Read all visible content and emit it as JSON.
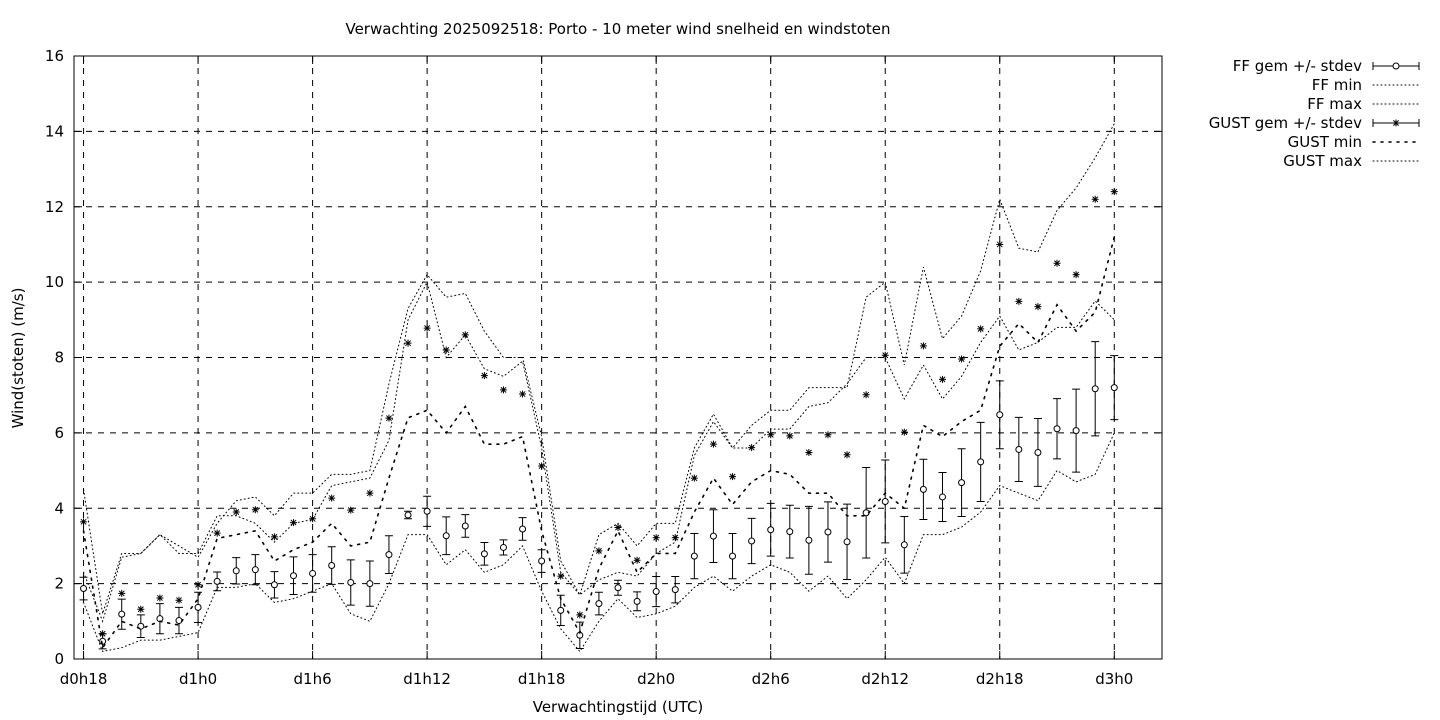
{
  "chart_data": {
    "type": "line",
    "title": "Verwachting 2025092518: Porto - 10 meter wind snelheid en windstoten",
    "xlabel": "Verwachtingstijd (UTC)",
    "ylabel": "Wind(stoten) (m/s)",
    "ylim": [
      0,
      16
    ],
    "xlim": [
      -0.5,
      56.5
    ],
    "grid": true,
    "legend_position": "outside-right-top",
    "y_ticks": [
      "0",
      "2",
      "4",
      "6",
      "8",
      "10",
      "12",
      "14",
      "16"
    ],
    "x_ticks": [
      {
        "x": 0,
        "label": "d0h18"
      },
      {
        "x": 6,
        "label": "d1h0"
      },
      {
        "x": 12,
        "label": "d1h6"
      },
      {
        "x": 18,
        "label": "d1h12"
      },
      {
        "x": 24,
        "label": "d1h18"
      },
      {
        "x": 30,
        "label": "d2h0"
      },
      {
        "x": 36,
        "label": "d2h6"
      },
      {
        "x": 42,
        "label": "d2h12"
      },
      {
        "x": 48,
        "label": "d2h18"
      },
      {
        "x": 54,
        "label": "d3h0"
      }
    ],
    "x": [
      0,
      1,
      2,
      3,
      4,
      5,
      6,
      7,
      8,
      9,
      10,
      11,
      12,
      13,
      14,
      15,
      16,
      17,
      18,
      19,
      20,
      21,
      22,
      23,
      24,
      25,
      26,
      27,
      28,
      29,
      30,
      31,
      32,
      33,
      34,
      35,
      36,
      37,
      38,
      39,
      40,
      41,
      42,
      43,
      44,
      45,
      46,
      47,
      48,
      49,
      50,
      51,
      52,
      53,
      54
    ],
    "series": [
      {
        "name": "FF gem +/- stdev",
        "style": "errorbars-circle",
        "values": [
          1.87,
          0.47,
          1.19,
          0.87,
          1.07,
          1.02,
          1.37,
          2.06,
          2.34,
          2.37,
          1.97,
          2.21,
          2.27,
          2.48,
          2.03,
          2.0,
          2.77,
          3.82,
          3.92,
          3.27,
          3.53,
          2.79,
          2.96,
          3.45,
          2.6,
          1.29,
          0.63,
          1.47,
          1.89,
          1.53,
          1.79,
          1.84,
          2.73,
          3.26,
          2.73,
          3.13,
          3.43,
          3.38,
          3.15,
          3.37,
          3.11,
          3.88,
          4.18,
          3.03,
          4.5,
          4.3,
          4.68,
          5.23,
          6.48,
          5.56,
          5.48,
          6.11,
          6.06,
          7.17,
          7.2
        ],
        "errors": [
          0.3,
          0.2,
          0.4,
          0.3,
          0.4,
          0.35,
          0.4,
          0.25,
          0.35,
          0.4,
          0.35,
          0.5,
          0.5,
          0.5,
          0.6,
          0.6,
          0.5,
          0.1,
          0.4,
          0.5,
          0.3,
          0.3,
          0.2,
          0.3,
          0.3,
          0.4,
          0.35,
          0.3,
          0.2,
          0.25,
          0.4,
          0.35,
          0.6,
          0.7,
          0.6,
          0.6,
          0.7,
          0.7,
          0.9,
          0.8,
          1.0,
          1.2,
          1.1,
          0.75,
          0.8,
          0.65,
          0.9,
          1.05,
          0.9,
          0.85,
          0.9,
          0.8,
          1.1,
          1.25,
          0.85
        ]
      },
      {
        "name": "FF min",
        "style": "dotted",
        "values": [
          1.5,
          0.2,
          0.3,
          0.5,
          0.5,
          0.6,
          0.7,
          1.9,
          1.9,
          2.0,
          1.5,
          1.6,
          1.8,
          2.0,
          1.2,
          1.0,
          2.0,
          3.3,
          3.3,
          2.5,
          2.9,
          2.3,
          2.5,
          3.0,
          1.8,
          0.8,
          0.2,
          1.0,
          1.6,
          1.1,
          1.2,
          1.4,
          1.9,
          2.2,
          1.8,
          2.2,
          2.5,
          2.3,
          1.8,
          2.2,
          1.6,
          2.1,
          2.7,
          2.0,
          3.3,
          3.3,
          3.5,
          3.9,
          4.6,
          4.4,
          4.2,
          5.0,
          4.7,
          4.9,
          6.0
        ]
      },
      {
        "name": "FF max",
        "style": "dotted",
        "values": [
          2.3,
          1.0,
          2.7,
          2.8,
          3.3,
          2.8,
          2.8,
          3.8,
          3.8,
          3.6,
          3.1,
          3.6,
          3.7,
          4.6,
          4.7,
          4.8,
          5.8,
          9.0,
          10.0,
          8.0,
          8.6,
          7.7,
          7.5,
          7.9,
          5.6,
          2.3,
          1.7,
          2.1,
          2.3,
          2.2,
          2.8,
          3.1,
          5.4,
          6.3,
          5.6,
          5.6,
          6.1,
          6.1,
          6.7,
          6.8,
          7.3,
          8.0,
          8.0,
          6.9,
          7.8,
          6.9,
          7.5,
          8.4,
          9.1,
          8.2,
          8.4,
          8.8,
          8.8,
          9.5,
          9.0
        ]
      },
      {
        "name": "GUST gem +/- stdev",
        "style": "errorbars-star",
        "values": [
          3.64,
          0.67,
          1.74,
          1.32,
          1.62,
          1.56,
          1.97,
          3.34,
          3.9,
          3.96,
          3.24,
          3.62,
          3.72,
          4.27,
          3.95,
          4.4,
          6.39,
          8.38,
          8.78,
          8.2,
          8.6,
          7.52,
          7.14,
          7.03,
          5.12,
          2.2,
          1.17,
          2.87,
          3.49,
          2.62,
          3.22,
          3.22,
          4.8,
          5.7,
          4.84,
          5.61,
          5.95,
          5.92,
          5.48,
          5.95,
          5.42,
          7.01,
          8.06,
          6.02,
          8.31,
          7.42,
          7.96,
          8.76,
          11.0,
          9.49,
          9.35,
          10.5,
          10.2,
          12.2,
          12.4
        ]
      },
      {
        "name": "GUST min",
        "style": "dotted",
        "values": [
          3.4,
          0.3,
          1.0,
          0.8,
          1.0,
          0.9,
          1.6,
          3.2,
          3.3,
          3.4,
          2.6,
          2.9,
          3.1,
          3.6,
          3.0,
          3.1,
          4.8,
          6.4,
          6.6,
          6.0,
          6.7,
          5.7,
          5.7,
          5.9,
          3.4,
          1.6,
          0.7,
          2.4,
          3.4,
          2.3,
          2.8,
          2.8,
          3.9,
          4.8,
          4.1,
          4.7,
          5.0,
          4.9,
          4.4,
          4.4,
          3.8,
          3.8,
          4.4,
          4.0,
          6.2,
          5.9,
          6.3,
          6.6,
          8.3,
          8.9,
          8.4,
          9.4,
          8.7,
          9.2,
          11.2
        ]
      },
      {
        "name": "GUST max",
        "style": "dotted",
        "values": [
          4.5,
          1.2,
          2.8,
          2.8,
          3.3,
          3.0,
          2.7,
          3.6,
          4.2,
          4.3,
          3.8,
          4.4,
          4.4,
          4.9,
          4.9,
          5.0,
          7.3,
          9.3,
          10.2,
          9.6,
          9.7,
          8.7,
          8.0,
          8.0,
          5.9,
          2.6,
          1.7,
          3.3,
          3.6,
          3.0,
          3.6,
          3.6,
          5.6,
          6.5,
          5.6,
          6.2,
          6.6,
          6.6,
          7.2,
          7.2,
          7.2,
          9.6,
          10.0,
          7.8,
          10.4,
          8.5,
          9.1,
          10.3,
          12.2,
          10.9,
          10.8,
          11.9,
          12.5,
          13.3,
          14.2
        ]
      }
    ]
  }
}
